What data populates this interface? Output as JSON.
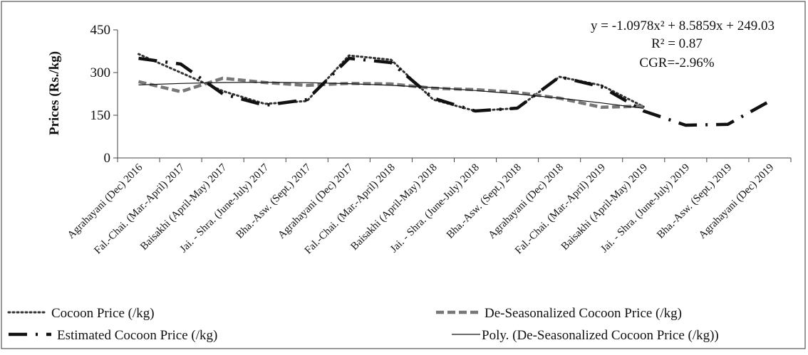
{
  "chart_data": {
    "type": "line",
    "ylabel": "Prices (Rs./kg)",
    "ylim": [
      0,
      450
    ],
    "yticks": [
      0,
      150,
      300,
      450
    ],
    "categories": [
      "Agrahayani (Dec) 2016",
      "Fal.-Chai. (Mar.-April) 2017",
      "Baisakhi (April-May) 2017",
      "Jai. - Shra. (June-July) 2017",
      "Bha.-Asw. (Sept.) 2017",
      "Agrahayani (Dec) 2017",
      "Fal.-Chai. (Mar.-April) 2018",
      "Baisakhi (April-May) 2018",
      "Jai. - Shra. (June-July) 2018",
      "Bha.-Asw. (Sept.) 2018",
      "Agrahayani (Dec) 2018",
      "Fal.-Chai. (Mar.-April) 2019",
      "Baisakhi (April-May) 2019",
      "Jai. - Shra. (June-July) 2019",
      "Bha.-Asw. (Sept.) 2019",
      "Agrahayani (Dec) 2019"
    ],
    "series": [
      {
        "name": "Cocoon Price (/kg)",
        "style": "dotted",
        "color": "#333333",
        "values": [
          365,
          300,
          235,
          190,
          200,
          360,
          345,
          205,
          165,
          175,
          285,
          255,
          180,
          null,
          null,
          null
        ]
      },
      {
        "name": "De-Seasonalized Cocoon Price (/kg)",
        "style": "dashed",
        "color": "#777777",
        "values": [
          268,
          233,
          280,
          265,
          255,
          262,
          260,
          245,
          240,
          230,
          210,
          178,
          182,
          null,
          null,
          null
        ]
      },
      {
        "name": "Estimated Cocoon Price (/kg)",
        "style": "long-dash-dot",
        "color": "#111111",
        "values": [
          350,
          330,
          225,
          185,
          205,
          350,
          335,
          210,
          165,
          175,
          285,
          250,
          165,
          115,
          118,
          200
        ]
      },
      {
        "name": "Poly. (De-Seasonalized Cocoon Price (/kg))",
        "style": "solid-thin",
        "color": "#111111",
        "values": [
          256.5,
          261.8,
          264.9,
          265.8,
          264.5,
          261.0,
          255.3,
          247.3,
          237.1,
          224.7,
          210.1,
          193.3,
          174.2,
          null,
          null,
          null
        ]
      }
    ],
    "annotations": [
      "y = -1.0978x² + 8.5859x + 249.03",
      "R² = 0.87",
      "CGR=-2.96%"
    ],
    "legend_position": "bottom"
  }
}
